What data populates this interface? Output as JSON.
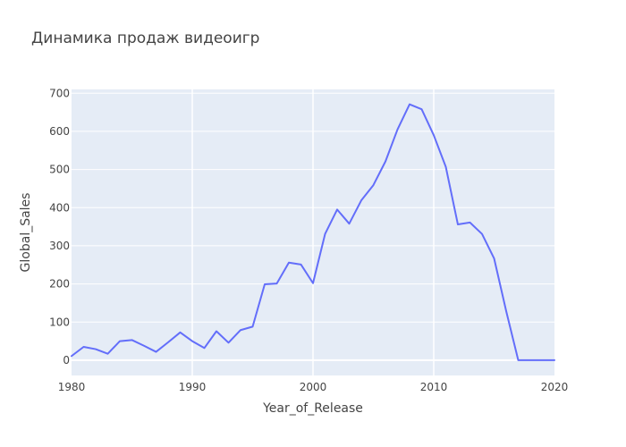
{
  "chart_data": {
    "type": "line",
    "title": "Динамика продаж видеоигр",
    "xlabel": "Year_of_Release",
    "ylabel": "Global_Sales",
    "xlim": [
      1980,
      2020
    ],
    "ylim": [
      -40,
      710
    ],
    "x_ticks": [
      1980,
      1990,
      2000,
      2010,
      2020
    ],
    "y_ticks": [
      0,
      100,
      200,
      300,
      400,
      500,
      600,
      700
    ],
    "grid": true,
    "legend": "none",
    "colors": {
      "line": "#636efa",
      "plot_background": "#e5ecf6",
      "grid": "#ffffff",
      "text": "#444444"
    },
    "series": [
      {
        "x": [
          1980,
          1981,
          1982,
          1983,
          1984,
          1985,
          1986,
          1987,
          1988,
          1989,
          1990,
          1991,
          1992,
          1993,
          1994,
          1995,
          1996,
          1997,
          1998,
          1999,
          2000,
          2001,
          2002,
          2003,
          2004,
          2005,
          2006,
          2007,
          2008,
          2009,
          2010,
          2011,
          2012,
          2013,
          2014,
          2015,
          2016,
          2017,
          2018,
          2019,
          2020
        ],
        "y": [
          11,
          35,
          29,
          17,
          50,
          53,
          38,
          22,
          47,
          73,
          50,
          32,
          76,
          46,
          79,
          88,
          199,
          201,
          256,
          251,
          202,
          331,
          395,
          358,
          419,
          459,
          521,
          605,
          671,
          658,
          590,
          507,
          356,
          361,
          331,
          267,
          129,
          0.1,
          0,
          0,
          0
        ]
      }
    ]
  }
}
